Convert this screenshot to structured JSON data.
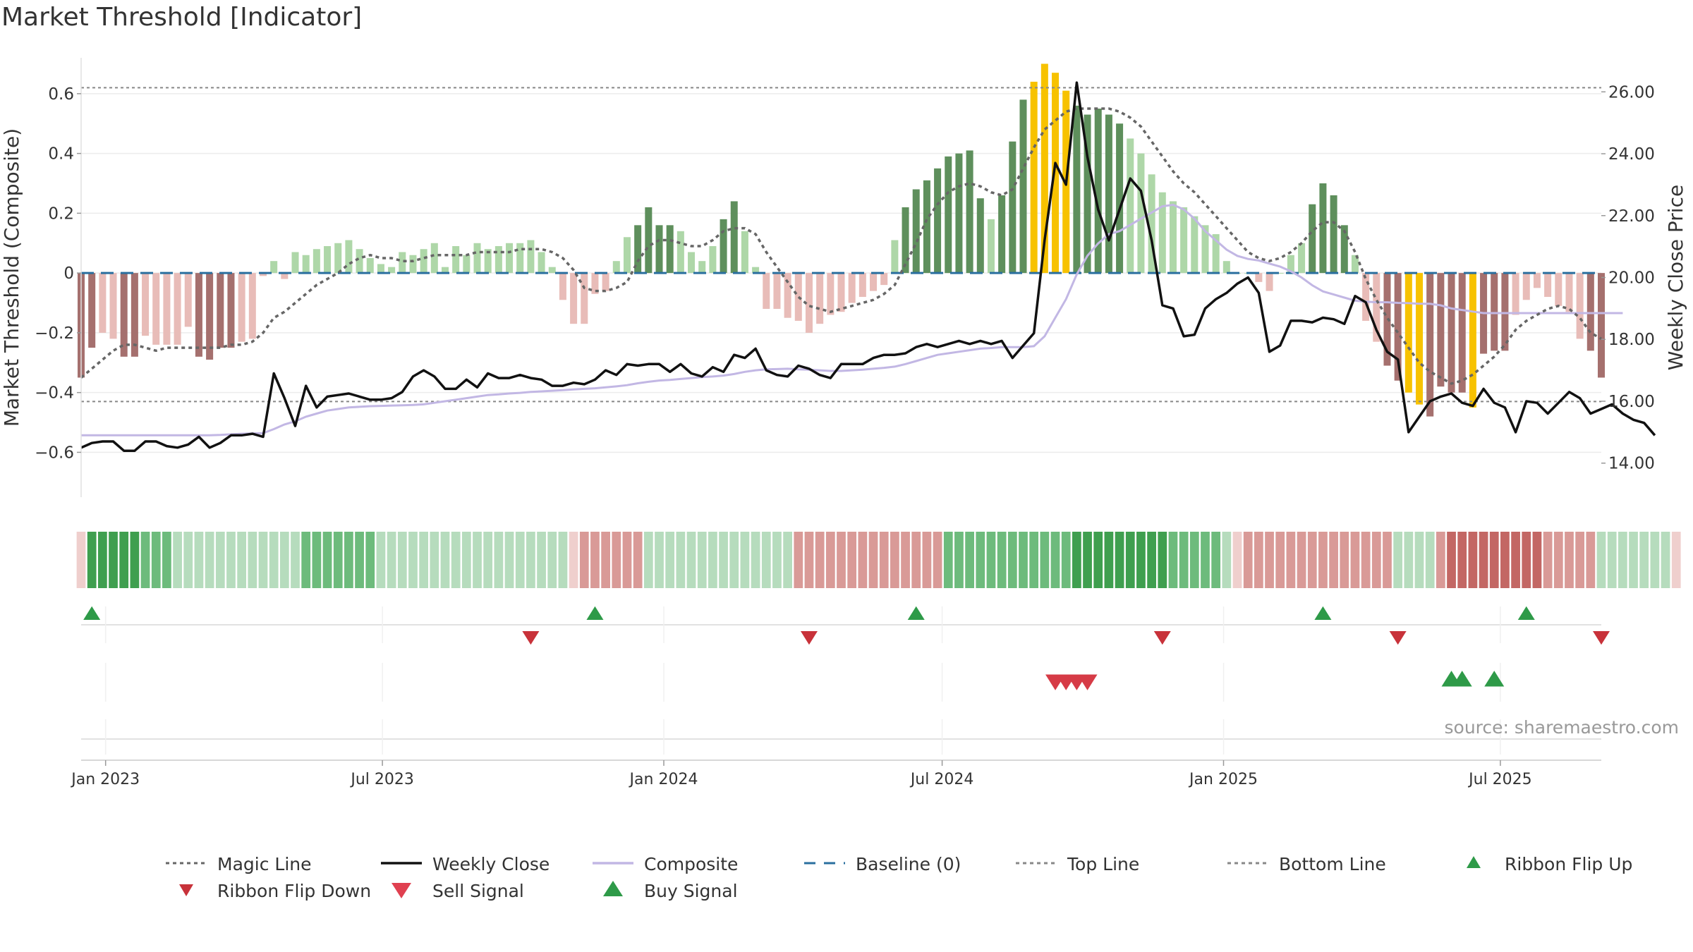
{
  "title": "Market Threshold [Indicator]",
  "source": "source: sharemaestro.com",
  "colors": {
    "pos_strong": "#5e8f5c",
    "pos_light": "#aed7a8",
    "neg_strong": "#a5706e",
    "neg_light": "#e8bcb8",
    "gold": "#f7c200",
    "magic": "#666666",
    "close": "#111111",
    "composite": "#c2b7e4",
    "baseline": "#2a6f9f",
    "buy": "#2e9a48",
    "sell": "#d63b46"
  },
  "chart_data": {
    "type": "bar",
    "title": "Market Threshold [Indicator]",
    "xlabel": "",
    "ylabel": "Market Threshold (Composite)",
    "y2label": "Weekly Close Price",
    "ylim": [
      -0.75,
      0.72
    ],
    "y2lim": [
      12.9,
      27.1
    ],
    "yticks": [
      0.6,
      0.4,
      0.2,
      0,
      -0.2,
      -0.4,
      -0.6
    ],
    "ytick_labels": [
      "0.6",
      "0.4",
      "0.2",
      "0",
      "−0.2",
      "−0.4",
      "−0.6"
    ],
    "y2ticks": [
      26,
      24,
      22,
      20,
      18,
      16,
      14
    ],
    "y2tick_labels": [
      "26.00",
      "24.00",
      "22.00",
      "20.00",
      "18.00",
      "16.00",
      "14.00"
    ],
    "x_range": [
      "2022-12-16",
      "2025-09-05"
    ],
    "date_ticks": [
      "2023-01-01",
      "2023-07-01",
      "2024-01-01",
      "2024-07-01",
      "2025-01-01",
      "2025-07-01"
    ],
    "date_tick_labels": [
      "Jan 2023",
      "Jul 2023",
      "Jan 2024",
      "Jul 2024",
      "Jan 2025",
      "Jul 2025"
    ],
    "top_line": 0.62,
    "bottom_line": -0.43,
    "baseline": 0,
    "bars_start": "2022-12-16",
    "bar_interval_days": 7,
    "bars": [
      -0.35,
      -0.25,
      -0.2,
      -0.22,
      -0.28,
      -0.28,
      -0.21,
      -0.24,
      -0.24,
      -0.24,
      -0.18,
      -0.28,
      -0.29,
      -0.25,
      -0.25,
      -0.23,
      -0.22,
      -0.01,
      0.04,
      -0.02,
      0.07,
      0.06,
      0.08,
      0.09,
      0.1,
      0.11,
      0.08,
      0.05,
      0.03,
      0.02,
      0.07,
      0.06,
      0.08,
      0.1,
      0.02,
      0.09,
      0.06,
      0.1,
      0.08,
      0.09,
      0.1,
      0.1,
      0.11,
      0.07,
      0.02,
      -0.09,
      -0.17,
      -0.17,
      -0.07,
      -0.06,
      0.04,
      0.12,
      0.16,
      0.22,
      0.16,
      0.16,
      0.14,
      0.07,
      0.04,
      0.09,
      0.18,
      0.24,
      0.14,
      0.02,
      -0.12,
      -0.12,
      -0.15,
      -0.16,
      -0.2,
      -0.17,
      -0.14,
      -0.13,
      -0.1,
      -0.08,
      -0.06,
      -0.04,
      0.11,
      0.22,
      0.28,
      0.31,
      0.35,
      0.39,
      0.4,
      0.41,
      0.25,
      0.18,
      0.26,
      0.44,
      0.58,
      0.64,
      0.7,
      0.67,
      0.61,
      0.56,
      0.53,
      0.55,
      0.53,
      0.5,
      0.45,
      0.4,
      0.33,
      0.27,
      0.24,
      0.22,
      0.19,
      0.16,
      0.13,
      0.04,
      0.0,
      0.0,
      -0.03,
      -0.06,
      0.0,
      0.06,
      0.1,
      0.23,
      0.3,
      0.26,
      0.16,
      0.06,
      -0.16,
      -0.23,
      -0.31,
      -0.36,
      -0.4,
      -0.44,
      -0.48,
      -0.38,
      -0.4,
      -0.4,
      -0.45,
      -0.27,
      -0.26,
      -0.26,
      -0.14,
      -0.09,
      -0.05,
      -0.08,
      -0.11,
      -0.13,
      -0.22,
      -0.26,
      -0.35
    ],
    "gold_bar_indices": [
      89,
      90,
      91,
      92,
      124,
      125,
      130
    ],
    "magic_line": [
      -0.35,
      -0.32,
      -0.29,
      -0.26,
      -0.24,
      -0.24,
      -0.25,
      -0.26,
      -0.25,
      -0.25,
      -0.25,
      -0.25,
      -0.25,
      -0.25,
      -0.24,
      -0.24,
      -0.23,
      -0.2,
      -0.15,
      -0.13,
      -0.1,
      -0.07,
      -0.04,
      -0.02,
      0.0,
      0.03,
      0.05,
      0.06,
      0.05,
      0.05,
      0.04,
      0.04,
      0.05,
      0.06,
      0.06,
      0.06,
      0.06,
      0.07,
      0.07,
      0.07,
      0.07,
      0.08,
      0.08,
      0.08,
      0.07,
      0.05,
      0.01,
      -0.05,
      -0.06,
      -0.06,
      -0.05,
      -0.03,
      0.04,
      0.09,
      0.11,
      0.11,
      0.1,
      0.09,
      0.09,
      0.11,
      0.14,
      0.15,
      0.15,
      0.13,
      0.07,
      0.02,
      -0.03,
      -0.08,
      -0.11,
      -0.12,
      -0.13,
      -0.12,
      -0.11,
      -0.1,
      -0.09,
      -0.07,
      -0.04,
      0.03,
      0.1,
      0.18,
      0.23,
      0.27,
      0.29,
      0.3,
      0.29,
      0.27,
      0.26,
      0.28,
      0.35,
      0.42,
      0.48,
      0.51,
      0.54,
      0.55,
      0.55,
      0.55,
      0.55,
      0.54,
      0.52,
      0.49,
      0.44,
      0.39,
      0.34,
      0.3,
      0.27,
      0.23,
      0.19,
      0.15,
      0.11,
      0.07,
      0.05,
      0.04,
      0.05,
      0.07,
      0.1,
      0.14,
      0.17,
      0.17,
      0.14,
      0.07,
      -0.02,
      -0.09,
      -0.15,
      -0.2,
      -0.25,
      -0.3,
      -0.33,
      -0.35,
      -0.37,
      -0.36,
      -0.34,
      -0.31,
      -0.28,
      -0.24,
      -0.19,
      -0.16,
      -0.14,
      -0.12,
      -0.11,
      -0.12,
      -0.15,
      -0.2,
      -0.22
    ],
    "weekly_close": [
      14.5,
      14.65,
      14.7,
      14.7,
      14.4,
      14.4,
      14.7,
      14.7,
      14.55,
      14.5,
      14.6,
      14.85,
      14.5,
      14.65,
      14.9,
      14.9,
      14.95,
      14.85,
      16.9,
      16.1,
      15.2,
      16.5,
      15.8,
      16.15,
      16.2,
      16.25,
      16.15,
      16.05,
      16.05,
      16.1,
      16.3,
      16.8,
      17.0,
      16.8,
      16.4,
      16.4,
      16.7,
      16.45,
      16.9,
      16.75,
      16.75,
      16.85,
      16.75,
      16.7,
      16.5,
      16.5,
      16.6,
      16.55,
      16.7,
      17.0,
      16.85,
      17.2,
      17.15,
      17.2,
      17.2,
      16.95,
      17.2,
      16.9,
      16.8,
      17.1,
      16.95,
      17.5,
      17.4,
      17.7,
      17.0,
      16.85,
      16.8,
      17.15,
      17.05,
      16.85,
      16.75,
      17.2,
      17.2,
      17.2,
      17.4,
      17.5,
      17.5,
      17.55,
      17.75,
      17.85,
      17.75,
      17.85,
      17.95,
      17.85,
      17.95,
      17.85,
      17.95,
      17.4,
      17.8,
      18.2,
      21.2,
      23.7,
      23.0,
      26.3,
      23.9,
      22.2,
      21.2,
      22.2,
      23.2,
      22.8,
      21.2,
      19.1,
      19.0,
      18.1,
      18.15,
      19.0,
      19.3,
      19.5,
      19.8,
      20.0,
      19.5,
      17.6,
      17.8,
      18.6,
      18.6,
      18.55,
      18.7,
      18.65,
      18.5,
      19.4,
      19.2,
      18.3,
      17.6,
      17.35,
      15.0,
      15.5,
      16.0,
      16.15,
      16.25,
      15.95,
      15.85,
      16.4,
      15.95,
      15.8,
      15.0,
      16.0,
      15.95,
      15.6,
      15.95,
      16.3,
      16.1,
      15.6,
      15.75,
      15.9,
      15.6,
      15.4,
      15.3,
      14.9
    ],
    "composite": [
      14.9,
      14.9,
      14.9,
      14.9,
      14.9,
      14.9,
      14.9,
      14.9,
      14.9,
      14.9,
      14.9,
      14.9,
      14.9,
      14.91,
      14.93,
      14.95,
      14.96,
      14.97,
      15.1,
      15.25,
      15.35,
      15.5,
      15.6,
      15.7,
      15.75,
      15.8,
      15.82,
      15.84,
      15.85,
      15.86,
      15.87,
      15.88,
      15.9,
      15.95,
      16.0,
      16.05,
      16.1,
      16.15,
      16.2,
      16.22,
      16.25,
      16.27,
      16.3,
      16.32,
      16.34,
      16.36,
      16.38,
      16.4,
      16.42,
      16.45,
      16.48,
      16.52,
      16.58,
      16.63,
      16.67,
      16.69,
      16.72,
      16.75,
      16.78,
      16.8,
      16.83,
      16.88,
      16.95,
      17.0,
      17.03,
      17.04,
      17.05,
      17.03,
      17.02,
      17.0,
      16.98,
      16.98,
      17.0,
      17.02,
      17.05,
      17.08,
      17.12,
      17.2,
      17.3,
      17.4,
      17.5,
      17.55,
      17.6,
      17.65,
      17.7,
      17.72,
      17.75,
      17.75,
      17.75,
      17.78,
      18.1,
      18.7,
      19.3,
      20.1,
      20.7,
      21.1,
      21.4,
      21.5,
      21.7,
      21.9,
      22.1,
      22.3,
      22.35,
      22.2,
      21.9,
      21.5,
      21.2,
      20.9,
      20.7,
      20.6,
      20.55,
      20.45,
      20.35,
      20.2,
      20.0,
      19.75,
      19.55,
      19.45,
      19.35,
      19.25,
      19.22,
      19.2,
      19.2,
      19.18,
      19.17,
      19.15,
      19.15,
      19.1,
      19.0,
      18.95,
      18.9,
      18.85,
      18.85,
      18.85,
      18.85,
      18.85,
      18.85,
      18.85,
      18.85,
      18.85,
      18.85,
      18.85,
      18.85,
      18.85,
      18.85
    ],
    "ribbon": [
      "neg_light",
      "pos_strong",
      "pos_strong",
      "pos_strong",
      "pos_strong",
      "pos_strong",
      "pos_mid",
      "pos_mid",
      "pos_mid",
      "pos_light",
      "pos_light",
      "pos_light",
      "pos_light",
      "pos_light",
      "pos_light",
      "pos_light",
      "pos_light",
      "pos_light",
      "pos_light",
      "pos_light",
      "pos_light",
      "pos_mid",
      "pos_mid",
      "pos_mid",
      "pos_mid",
      "pos_mid",
      "pos_mid",
      "pos_mid",
      "pos_light",
      "pos_light",
      "pos_light",
      "pos_light",
      "pos_light",
      "pos_light",
      "pos_light",
      "pos_light",
      "pos_light",
      "pos_light",
      "pos_light",
      "pos_light",
      "pos_light",
      "pos_light",
      "pos_light",
      "pos_light",
      "pos_light",
      "pos_light",
      "neg_light",
      "neg_mid",
      "neg_mid",
      "neg_mid",
      "neg_mid",
      "neg_mid",
      "neg_mid",
      "pos_light",
      "pos_light",
      "pos_light",
      "pos_light",
      "pos_light",
      "pos_light",
      "pos_light",
      "pos_light",
      "pos_light",
      "pos_light",
      "pos_light",
      "pos_light",
      "pos_light",
      "pos_light",
      "neg_mid",
      "neg_mid",
      "neg_mid",
      "neg_mid",
      "neg_mid",
      "neg_mid",
      "neg_mid",
      "neg_mid",
      "neg_mid",
      "neg_mid",
      "neg_mid",
      "neg_mid",
      "neg_mid",
      "neg_mid",
      "pos_mid",
      "pos_mid",
      "pos_mid",
      "pos_mid",
      "pos_mid",
      "pos_mid",
      "pos_mid",
      "pos_mid",
      "pos_mid",
      "pos_mid",
      "pos_mid",
      "pos_mid",
      "pos_strong",
      "pos_strong",
      "pos_strong",
      "pos_strong",
      "pos_strong",
      "pos_strong",
      "pos_strong",
      "pos_strong",
      "pos_strong",
      "pos_mid",
      "pos_mid",
      "pos_mid",
      "pos_mid",
      "pos_mid",
      "pos_light",
      "neg_light",
      "neg_mid",
      "neg_mid",
      "neg_mid",
      "neg_mid",
      "neg_mid",
      "neg_mid",
      "neg_mid",
      "neg_mid",
      "neg_mid",
      "neg_mid",
      "neg_mid",
      "neg_mid",
      "neg_mid",
      "neg_mid",
      "pos_light",
      "pos_light",
      "pos_light",
      "pos_light",
      "neg_mid",
      "neg_strong",
      "neg_strong",
      "neg_strong",
      "neg_strong",
      "neg_strong",
      "neg_strong",
      "neg_strong",
      "neg_strong",
      "neg_strong",
      "neg_mid",
      "neg_mid",
      "neg_mid",
      "neg_mid",
      "neg_mid",
      "pos_light",
      "pos_light",
      "pos_light",
      "pos_light",
      "pos_light",
      "pos_light",
      "pos_light",
      "neg_light"
    ],
    "ribbon_flip_up": [
      "2022-12-23",
      "2023-11-17",
      "2024-06-14",
      "2025-03-07",
      "2025-07-18"
    ],
    "ribbon_flip_down": [
      "2023-10-06",
      "2024-04-05",
      "2024-11-22",
      "2025-04-25",
      "2025-09-05"
    ],
    "sell_signals": [
      "2024-09-13",
      "2024-09-20",
      "2024-09-27",
      "2024-10-04"
    ],
    "buy_signals": [
      "2025-05-30",
      "2025-06-06",
      "2025-06-27"
    ],
    "legend": [
      {
        "label": "Magic Line",
        "kind": "dotted",
        "color": "#666666"
      },
      {
        "label": "Weekly Close",
        "kind": "solid",
        "color": "#111111"
      },
      {
        "label": "Composite",
        "kind": "solid",
        "color": "#c2b7e4"
      },
      {
        "label": "Baseline (0)",
        "kind": "dashed",
        "color": "#2a6f9f"
      },
      {
        "label": "Top Line",
        "kind": "dotted",
        "color": "#888888"
      },
      {
        "label": "Bottom Line",
        "kind": "dotted",
        "color": "#888888"
      },
      {
        "label": "Ribbon Flip Up",
        "kind": "tri-up",
        "color": "#2e9a48"
      },
      {
        "label": "Ribbon Flip Down",
        "kind": "tri-down",
        "color": "#c8323a"
      },
      {
        "label": "Sell Signal",
        "kind": "tri-down-big",
        "color": "#e04050"
      },
      {
        "label": "Buy Signal",
        "kind": "tri-up-big",
        "color": "#2e9a48"
      }
    ],
    "legend_position": "bottom"
  }
}
